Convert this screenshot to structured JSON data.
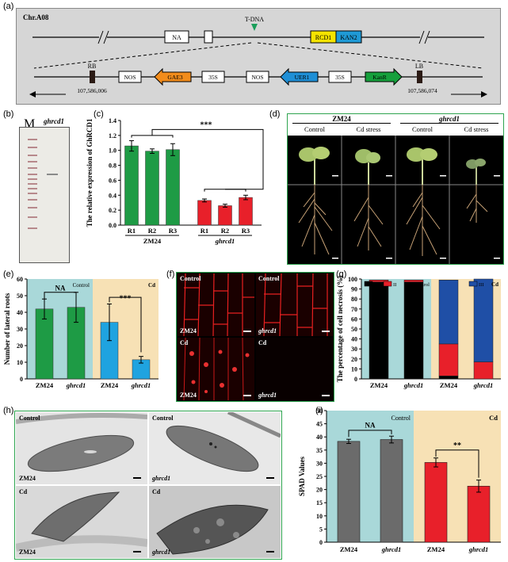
{
  "panel_labels": {
    "a": "(a)",
    "b": "(b)",
    "c": "(c)",
    "d": "(d)",
    "e": "(e)",
    "f": "(f)",
    "g": "(g)",
    "h": "(h)",
    "i": "(i)"
  },
  "panel_a": {
    "chromosome": "Chr.A08",
    "tdna": "T-DNA",
    "top_genes": [
      "NA",
      "RCD1",
      "KAN2"
    ],
    "insert_elements": [
      "RB",
      "NOS",
      "GAE3",
      "35S",
      "NOS",
      "UER1",
      "35S",
      "KanR",
      "LB"
    ],
    "left_coord": "107,586,006",
    "right_coord": "107,586,074",
    "colors": {
      "rcd1": "#f5e400",
      "kan2": "#1f9ad6",
      "gae3": "#f28c1b",
      "uer1": "#1f8fd6",
      "kanr": "#16a03c",
      "tdna": "#1a9e5a"
    }
  },
  "panel_b": {
    "lane_m": "M",
    "lane_sample": "ghrcd1"
  },
  "panel_c": {
    "sig": "***",
    "group1": "ZM24",
    "group2": "ghrcd1"
  },
  "panel_d": {
    "header_left": "ZM24",
    "header_right": "ghrcd1",
    "cols": [
      "Control",
      "Cd stress",
      "Control",
      "Cd stress"
    ]
  },
  "panel_e": {
    "ns": "NA",
    "sig": "***",
    "control": "Control",
    "cd": "Cd"
  },
  "panel_f": {
    "labels": [
      "Control",
      "Control",
      "Cd",
      "Cd"
    ],
    "genotypes": [
      "ZM24",
      "ghrcd1",
      "ZM24",
      "ghrcd1"
    ]
  },
  "panel_g": {
    "legend": [
      "I",
      "II",
      "III"
    ],
    "control": "Control",
    "cd": "Cd"
  },
  "panel_h": {
    "labels": [
      "Control",
      "Control",
      "Cd",
      "Cd"
    ],
    "genotypes": [
      "ZM24",
      "ghrcd1",
      "ZM24",
      "ghrcd1"
    ]
  },
  "panel_i": {
    "ns": "NA",
    "sig": "**",
    "control": "Control",
    "cd": "Cd"
  },
  "chart_data": [
    {
      "type": "bar",
      "id": "c",
      "categories": [
        "R1",
        "R2",
        "R3",
        "R1",
        "R2",
        "R3"
      ],
      "groups": [
        "ZM24",
        "ZM24",
        "ZM24",
        "ghrcd1",
        "ghrcd1",
        "ghrcd1"
      ],
      "values": [
        1.06,
        0.99,
        1.01,
        0.33,
        0.26,
        0.37
      ],
      "errors": [
        0.07,
        0.03,
        0.08,
        0.02,
        0.02,
        0.03
      ],
      "colors": [
        "#1e9b45",
        "#1e9b45",
        "#1e9b45",
        "#e8202a",
        "#e8202a",
        "#e8202a"
      ],
      "ylabel": "The relative expression of GhRCD1",
      "ylim": [
        0,
        1.4
      ],
      "yticks": [
        "0.0",
        "0.2",
        "0.4",
        "0.6",
        "0.8",
        "1.0",
        "1.2",
        "1.4"
      ]
    },
    {
      "type": "bar",
      "id": "e",
      "categories": [
        "ZM24",
        "ghrcd1",
        "ZM24",
        "ghrcd1"
      ],
      "values": [
        42,
        43,
        34,
        11.5
      ],
      "errors": [
        6,
        9,
        11,
        2
      ],
      "colors": [
        "#1e9b45",
        "#1e9b45",
        "#1fa3e0",
        "#1fa3e0"
      ],
      "ylabel": "Number of lateral roots",
      "ylim": [
        0,
        60
      ],
      "yticks": [
        "0",
        "10",
        "20",
        "30",
        "40",
        "50",
        "60"
      ]
    },
    {
      "type": "bar",
      "id": "g",
      "stacked": true,
      "categories": [
        "ZM24",
        "ghrcd1",
        "ZM24",
        "ghrcd1"
      ],
      "series": [
        {
          "name": "I",
          "values": [
            97,
            97,
            3,
            0
          ],
          "color": "#000000"
        },
        {
          "name": "II",
          "values": [
            2,
            2,
            32,
            17
          ],
          "color": "#e8202a"
        },
        {
          "name": "III",
          "values": [
            0,
            0,
            64,
            83
          ],
          "color": "#1f4fa6"
        }
      ],
      "ylabel": "The percentage of cell necrosis (%)",
      "ylim": [
        0,
        100
      ],
      "yticks": [
        "0",
        "10",
        "20",
        "30",
        "40",
        "50",
        "60",
        "70",
        "80",
        "90",
        "100"
      ]
    },
    {
      "type": "bar",
      "id": "i",
      "categories": [
        "ZM24",
        "ghrcd1",
        "ZM24",
        "ghrcd1"
      ],
      "values": [
        38.3,
        39.0,
        30.3,
        21.3
      ],
      "errors": [
        0.8,
        1.3,
        1.7,
        2.3
      ],
      "colors": [
        "#6b6b6b",
        "#6b6b6b",
        "#e8202a",
        "#e8202a"
      ],
      "ylabel": "SPAD Values",
      "ylim": [
        0,
        50
      ],
      "yticks": [
        "0",
        "5",
        "10",
        "15",
        "20",
        "25",
        "30",
        "35",
        "40",
        "45",
        "50"
      ]
    }
  ]
}
